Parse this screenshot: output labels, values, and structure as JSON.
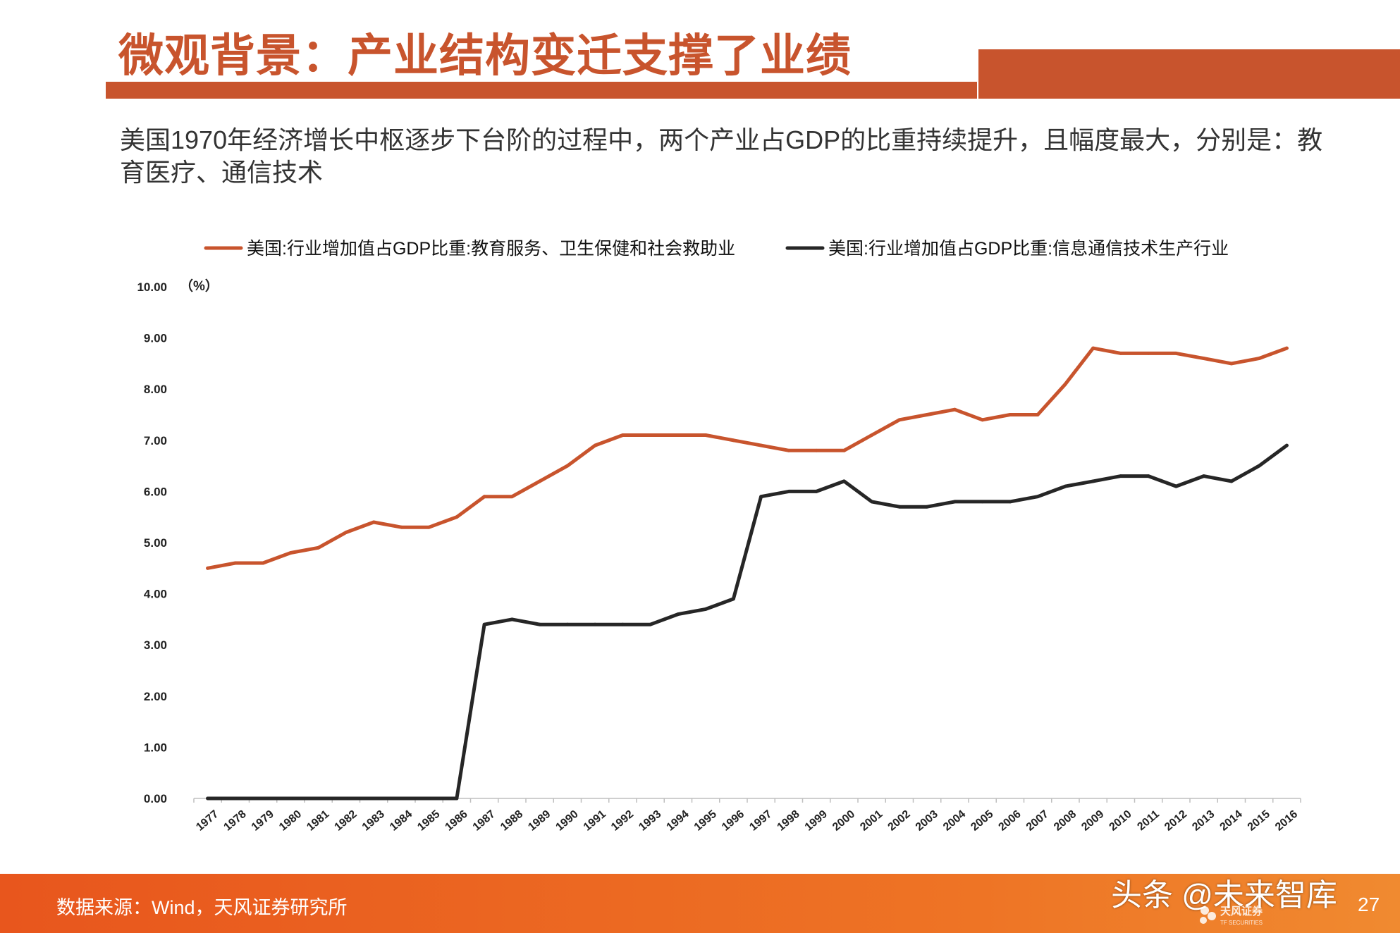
{
  "header": {
    "title": "微观背景：产业结构变迁支撑了业绩",
    "subtitle": "美国1970年经济增长中枢逐步下台阶的过程中，两个产业占GDP的比重持续提升，且幅度最大，分别是：教育医疗、通信技术"
  },
  "footer": {
    "source": "数据来源：Wind，天风证券研究所",
    "watermark": "头条 @未来智库",
    "logo_text": "天风证券",
    "logo_subtext": "TF SECURITIES",
    "page_number": "27"
  },
  "colors": {
    "brand": "#c8542d",
    "series1": "#c8542d",
    "series2": "#262626"
  },
  "chart_data": {
    "type": "line",
    "y_unit": "（%）",
    "ylim": [
      0,
      10
    ],
    "yticks": [
      "0.00",
      "1.00",
      "2.00",
      "3.00",
      "4.00",
      "5.00",
      "6.00",
      "7.00",
      "8.00",
      "9.00",
      "10.00"
    ],
    "grid": false,
    "legend_position": "top",
    "categories": [
      "1977",
      "1978",
      "1979",
      "1980",
      "1981",
      "1982",
      "1983",
      "1984",
      "1985",
      "1986",
      "1987",
      "1988",
      "1989",
      "1990",
      "1991",
      "1992",
      "1993",
      "1994",
      "1995",
      "1996",
      "1997",
      "1998",
      "1999",
      "2000",
      "2001",
      "2002",
      "2003",
      "2004",
      "2005",
      "2006",
      "2007",
      "2008",
      "2009",
      "2010",
      "2011",
      "2012",
      "2013",
      "2014",
      "2015",
      "2016"
    ],
    "series": [
      {
        "name": "美国:行业增加值占GDP比重:教育服务、卫生保健和社会救助业",
        "color": "#c8542d",
        "values": [
          4.5,
          4.6,
          4.6,
          4.8,
          4.9,
          5.2,
          5.4,
          5.3,
          5.3,
          5.5,
          5.9,
          5.9,
          6.2,
          6.5,
          6.9,
          7.1,
          7.1,
          7.1,
          7.1,
          7.0,
          6.9,
          6.8,
          6.8,
          6.8,
          7.1,
          7.4,
          7.5,
          7.6,
          7.4,
          7.5,
          7.5,
          8.1,
          8.8,
          8.7,
          8.7,
          8.7,
          8.6,
          8.5,
          8.6,
          8.8
        ]
      },
      {
        "name": "美国:行业增加值占GDP比重:信息通信技术生产行业",
        "color": "#262626",
        "values": [
          0,
          0,
          0,
          0,
          0,
          0,
          0,
          0,
          0,
          0,
          3.4,
          3.5,
          3.4,
          3.4,
          3.4,
          3.4,
          3.4,
          3.6,
          3.7,
          3.9,
          5.9,
          6.0,
          6.0,
          6.2,
          5.8,
          5.7,
          5.7,
          5.8,
          5.8,
          5.8,
          5.9,
          6.1,
          6.2,
          6.3,
          6.3,
          6.1,
          6.3,
          6.2,
          6.5,
          6.9
        ]
      }
    ]
  }
}
